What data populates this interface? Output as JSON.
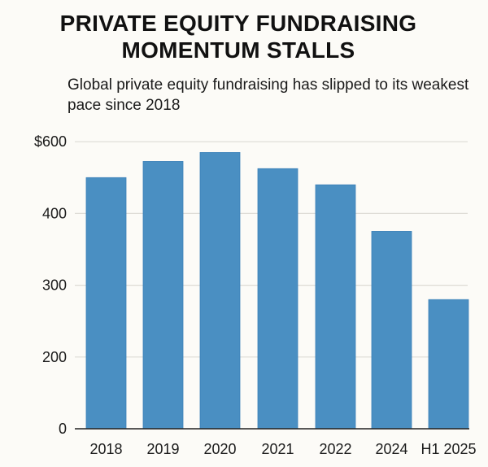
{
  "chart_data": {
    "type": "bar",
    "title": "PRIVATE EQUITY FUNDRAISING MOMENTUM STALLS",
    "subtitle": "Global private equity fundraising has slipped to its weakest pace since 2018",
    "xlabel": "",
    "ylabel": "",
    "categories": [
      "2018",
      "2019",
      "2020",
      "2021",
      "2022",
      "2024",
      "H1 2025"
    ],
    "values": [
      500,
      545,
      570,
      525,
      480,
      375,
      280
    ],
    "y_ticks": [
      {
        "value": 0,
        "label": "0"
      },
      {
        "value": 200,
        "label": "200"
      },
      {
        "value": 300,
        "label": "300"
      },
      {
        "value": 400,
        "label": "400"
      },
      {
        "value": 600,
        "label": "$600"
      }
    ],
    "ylim": [
      0,
      600
    ],
    "grid": true,
    "legend": "none",
    "colors": {
      "bar": "#4a8fc2",
      "grid": "#dddbd5",
      "background": "#fcfbf7"
    }
  }
}
